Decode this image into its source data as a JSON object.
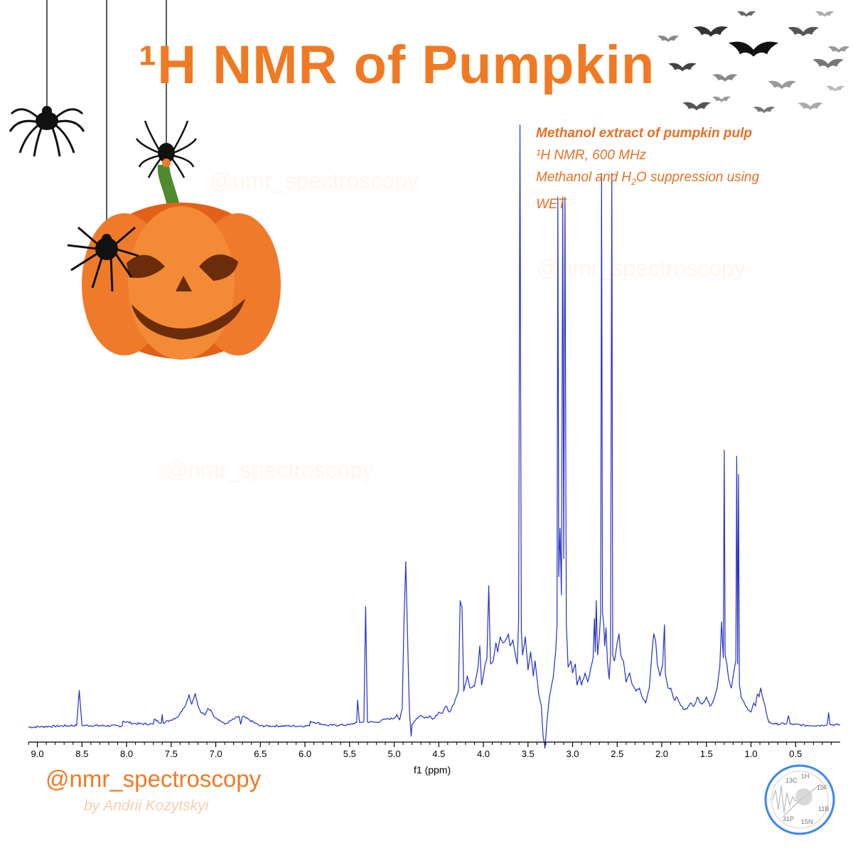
{
  "header": {
    "title": "¹H NMR of Pumpkin"
  },
  "info": {
    "line1": "Methanol extract of pumpkin pulp",
    "line2": "¹H NMR, 600 MHz",
    "line3_prefix": "Methanol and  H",
    "line3_sub": "2",
    "line3_suffix": "O suppression using",
    "line4": "WET"
  },
  "footer": {
    "handle": "@nmr_spectroscopy",
    "byline": "by Andrii Kozytskyi"
  },
  "watermark": {
    "text": "@nmr_spectroscopy"
  },
  "logo": {
    "nuclei": [
      "13C",
      "1H",
      "19F",
      "11B",
      "15N",
      "31P"
    ]
  },
  "colors": {
    "accent": "#f07a23",
    "spectrum": "#2430c8"
  },
  "chart_data": {
    "type": "line",
    "title": "",
    "xlabel": "f1 (ppm)",
    "ylabel": "",
    "x_reversed": true,
    "xlim": [
      9.1,
      0.0
    ],
    "ylim": [
      0,
      100
    ],
    "xticks": [
      9.0,
      8.5,
      8.0,
      7.5,
      7.0,
      6.5,
      6.0,
      5.5,
      5.0,
      4.5,
      4.0,
      3.5,
      3.0,
      2.5,
      2.0,
      1.5,
      1.0,
      0.5
    ],
    "xtick_labels": [
      "9.0",
      "8.5",
      "8.0",
      "7.5",
      "7.0",
      "6.5",
      "6.0",
      "5.5",
      "5.0",
      "4.5",
      "4.0",
      "3.5",
      "3.0",
      "2.5",
      "2.0",
      "1.5",
      "1.0",
      "0.5"
    ],
    "grid": false,
    "series": [
      {
        "values": [
          [
            9.1,
            0.0
          ],
          [
            8.56,
            0.3
          ],
          [
            8.53,
            6.1
          ],
          [
            8.5,
            0.3
          ],
          [
            8.05,
            0.2
          ],
          [
            8.04,
            1.0
          ],
          [
            7.92,
            0.6
          ],
          [
            7.7,
            0.5
          ],
          [
            7.69,
            1.3
          ],
          [
            7.61,
            0.7
          ],
          [
            7.6,
            2.1
          ],
          [
            7.59,
            0.7
          ],
          [
            7.5,
            1.2
          ],
          [
            7.42,
            1.8
          ],
          [
            7.37,
            3.0
          ],
          [
            7.33,
            4.0
          ],
          [
            7.3,
            5.4
          ],
          [
            7.27,
            3.8
          ],
          [
            7.23,
            5.6
          ],
          [
            7.2,
            3.6
          ],
          [
            7.17,
            2.5
          ],
          [
            7.12,
            2.0
          ],
          [
            7.09,
            3.1
          ],
          [
            7.06,
            2.9
          ],
          [
            7.03,
            2.0
          ],
          [
            6.9,
            0.5
          ],
          [
            6.74,
            1.8
          ],
          [
            6.72,
            0.5
          ],
          [
            6.7,
            1.8
          ],
          [
            6.5,
            0.2
          ],
          [
            5.95,
            0.2
          ],
          [
            5.94,
            1.0
          ],
          [
            5.75,
            0.3
          ],
          [
            5.5,
            0.4
          ],
          [
            5.42,
            0.8
          ],
          [
            5.41,
            4.5
          ],
          [
            5.39,
            0.8
          ],
          [
            5.34,
            0.9
          ],
          [
            5.32,
            20.0
          ],
          [
            5.3,
            0.9
          ],
          [
            5.2,
            0.8
          ],
          [
            5.1,
            1.3
          ],
          [
            5.0,
            1.5
          ],
          [
            4.97,
            2.1
          ],
          [
            4.94,
            1.2
          ],
          [
            4.91,
            3.0
          ],
          [
            4.89,
            17.5
          ],
          [
            4.87,
            27.5
          ],
          [
            4.85,
            15.0
          ],
          [
            4.83,
            3.0
          ],
          [
            4.81,
            -1.5
          ],
          [
            4.8,
            0.5
          ],
          [
            4.75,
            1.4
          ],
          [
            4.7,
            2.0
          ],
          [
            4.66,
            1.5
          ],
          [
            4.6,
            1.9
          ],
          [
            4.57,
            1.3
          ],
          [
            4.5,
            2.5
          ],
          [
            4.46,
            2.3
          ],
          [
            4.42,
            3.5
          ],
          [
            4.38,
            2.5
          ],
          [
            4.33,
            3.8
          ],
          [
            4.28,
            6.0
          ],
          [
            4.26,
            21.0
          ],
          [
            4.24,
            20.0
          ],
          [
            4.22,
            6.0
          ],
          [
            4.18,
            8.5
          ],
          [
            4.15,
            6.5
          ],
          [
            4.1,
            6.8
          ],
          [
            4.06,
            10.0
          ],
          [
            4.04,
            13.5
          ],
          [
            4.02,
            7.0
          ],
          [
            3.98,
            10.5
          ],
          [
            3.96,
            11.5
          ],
          [
            3.94,
            23.5
          ],
          [
            3.92,
            10.5
          ],
          [
            3.89,
            11.0
          ],
          [
            3.86,
            14.0
          ],
          [
            3.84,
            12.5
          ],
          [
            3.81,
            15.0
          ],
          [
            3.78,
            14.0
          ],
          [
            3.75,
            14.5
          ],
          [
            3.72,
            15.5
          ],
          [
            3.7,
            13.5
          ],
          [
            3.67,
            14.5
          ],
          [
            3.64,
            12.0
          ],
          [
            3.62,
            10.5
          ],
          [
            3.605,
            18.0
          ],
          [
            3.59,
            100.0
          ],
          [
            3.575,
            16.0
          ],
          [
            3.56,
            12.0
          ],
          [
            3.53,
            15.0
          ],
          [
            3.5,
            9.5
          ],
          [
            3.47,
            12.5
          ],
          [
            3.44,
            8.5
          ],
          [
            3.42,
            11.0
          ],
          [
            3.38,
            5.5
          ],
          [
            3.35,
            3.5
          ],
          [
            3.33,
            -1.5
          ],
          [
            3.31,
            -3.5
          ],
          [
            3.29,
            0.5
          ],
          [
            3.26,
            5.0
          ],
          [
            3.22,
            8.0
          ],
          [
            3.19,
            12.5
          ],
          [
            3.175,
            17.0
          ],
          [
            3.165,
            88.0
          ],
          [
            3.155,
            25.0
          ],
          [
            3.14,
            33.0
          ],
          [
            3.125,
            22.0
          ],
          [
            3.11,
            88.0
          ],
          [
            3.1,
            28.0
          ],
          [
            3.085,
            88.0
          ],
          [
            3.07,
            17.0
          ],
          [
            3.05,
            10.0
          ],
          [
            3.02,
            11.0
          ],
          [
            3.0,
            9.0
          ],
          [
            2.97,
            10.5
          ],
          [
            2.95,
            7.0
          ],
          [
            2.92,
            8.5
          ],
          [
            2.9,
            7.0
          ],
          [
            2.86,
            9.0
          ],
          [
            2.83,
            7.5
          ],
          [
            2.8,
            9.5
          ],
          [
            2.77,
            11.5
          ],
          [
            2.755,
            18.0
          ],
          [
            2.745,
            12.5
          ],
          [
            2.735,
            21.0
          ],
          [
            2.72,
            12.0
          ],
          [
            2.7,
            15.0
          ],
          [
            2.685,
            19.0
          ],
          [
            2.675,
            92.0
          ],
          [
            2.665,
            19.0
          ],
          [
            2.65,
            17.0
          ],
          [
            2.64,
            13.5
          ],
          [
            2.625,
            16.5
          ],
          [
            2.61,
            11.0
          ],
          [
            2.59,
            8.0
          ],
          [
            2.575,
            12.0
          ],
          [
            2.56,
            92.0
          ],
          [
            2.55,
            12.0
          ],
          [
            2.53,
            11.0
          ],
          [
            2.5,
            14.0
          ],
          [
            2.48,
            15.5
          ],
          [
            2.46,
            12.0
          ],
          [
            2.43,
            11.0
          ],
          [
            2.4,
            7.5
          ],
          [
            2.36,
            9.0
          ],
          [
            2.33,
            7.0
          ],
          [
            2.29,
            6.0
          ],
          [
            2.25,
            6.5
          ],
          [
            2.22,
            5.0
          ],
          [
            2.18,
            4.0
          ],
          [
            2.14,
            6.5
          ],
          [
            2.11,
            12.5
          ],
          [
            2.09,
            15.5
          ],
          [
            2.07,
            14.5
          ],
          [
            2.05,
            10.5
          ],
          [
            2.02,
            8.5
          ],
          [
            1.99,
            10.5
          ],
          [
            1.97,
            17.0
          ],
          [
            1.96,
            9.0
          ],
          [
            1.93,
            6.5
          ],
          [
            1.9,
            6.5
          ],
          [
            1.86,
            4.5
          ],
          [
            1.83,
            5.0
          ],
          [
            1.8,
            4.0
          ],
          [
            1.76,
            3.0
          ],
          [
            1.72,
            3.0
          ],
          [
            1.68,
            4.0
          ],
          [
            1.64,
            3.5
          ],
          [
            1.6,
            5.0
          ],
          [
            1.57,
            4.0
          ],
          [
            1.54,
            4.0
          ],
          [
            1.5,
            5.0
          ],
          [
            1.46,
            3.5
          ],
          [
            1.42,
            4.5
          ],
          [
            1.38,
            6.5
          ],
          [
            1.35,
            10.0
          ],
          [
            1.33,
            17.5
          ],
          [
            1.31,
            11.5
          ],
          [
            1.3,
            46.0
          ],
          [
            1.29,
            12.0
          ],
          [
            1.27,
            10.5
          ],
          [
            1.25,
            8.0
          ],
          [
            1.22,
            6.5
          ],
          [
            1.2,
            8.5
          ],
          [
            1.17,
            11.0
          ],
          [
            1.16,
            45.0
          ],
          [
            1.15,
            10.5
          ],
          [
            1.14,
            42.0
          ],
          [
            1.13,
            7.0
          ],
          [
            1.11,
            5.0
          ],
          [
            1.06,
            3.5
          ],
          [
            1.0,
            2.5
          ],
          [
            0.97,
            4.0
          ],
          [
            0.95,
            3.5
          ],
          [
            0.93,
            5.5
          ],
          [
            0.91,
            5.0
          ],
          [
            0.89,
            6.5
          ],
          [
            0.87,
            5.0
          ],
          [
            0.85,
            4.0
          ],
          [
            0.83,
            2.5
          ],
          [
            0.8,
            0.8
          ],
          [
            0.72,
            0.5
          ],
          [
            0.6,
            0.6
          ],
          [
            0.58,
            1.9
          ],
          [
            0.56,
            0.5
          ],
          [
            0.4,
            0.3
          ],
          [
            0.2,
            0.3
          ],
          [
            0.145,
            0.5
          ],
          [
            0.13,
            2.4
          ],
          [
            0.115,
            0.4
          ],
          [
            0.0,
            0.4
          ]
        ]
      }
    ]
  }
}
